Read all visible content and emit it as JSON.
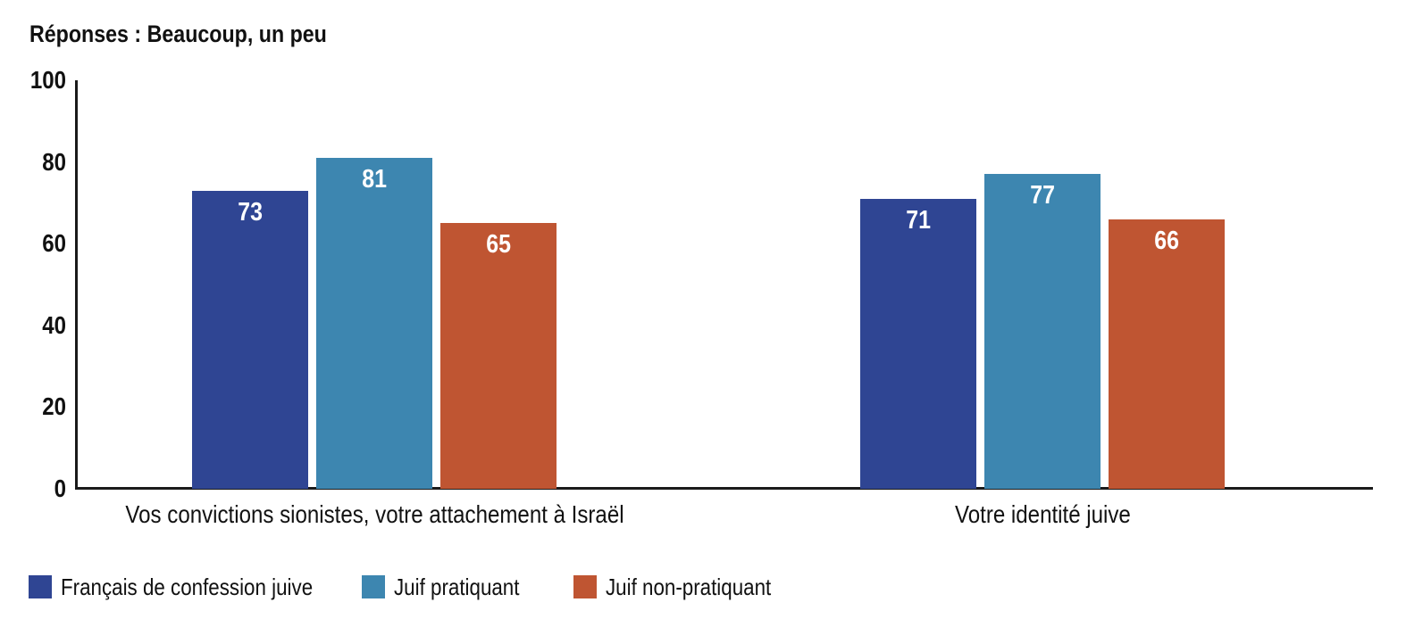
{
  "title": "Réponses : Beaucoup, un peu",
  "chart_data": {
    "type": "bar",
    "title": "Réponses : Beaucoup, un peu",
    "categories": [
      "Vos convictions sionistes, votre attachement à Israël",
      "Votre identité juive"
    ],
    "series": [
      {
        "name": "Français de confession juive",
        "color": "#2F4593",
        "values": [
          73,
          71
        ]
      },
      {
        "name": "Juif pratiquant",
        "color": "#3D86B0",
        "values": [
          81,
          77
        ]
      },
      {
        "name": "Juif non-pratiquant",
        "color": "#BF5532",
        "values": [
          65,
          66
        ]
      }
    ],
    "xlabel": "",
    "ylabel": "",
    "ylim": [
      0,
      100
    ],
    "yticks": [
      0,
      20,
      40,
      60,
      80,
      100
    ],
    "grid": "off",
    "value_labels": "inside-top-white",
    "legend_position": "bottom-left"
  },
  "colors": {
    "axis": "#1a1a1a",
    "text": "#111111",
    "background": "#ffffff",
    "value_label_text": "#ffffff"
  }
}
